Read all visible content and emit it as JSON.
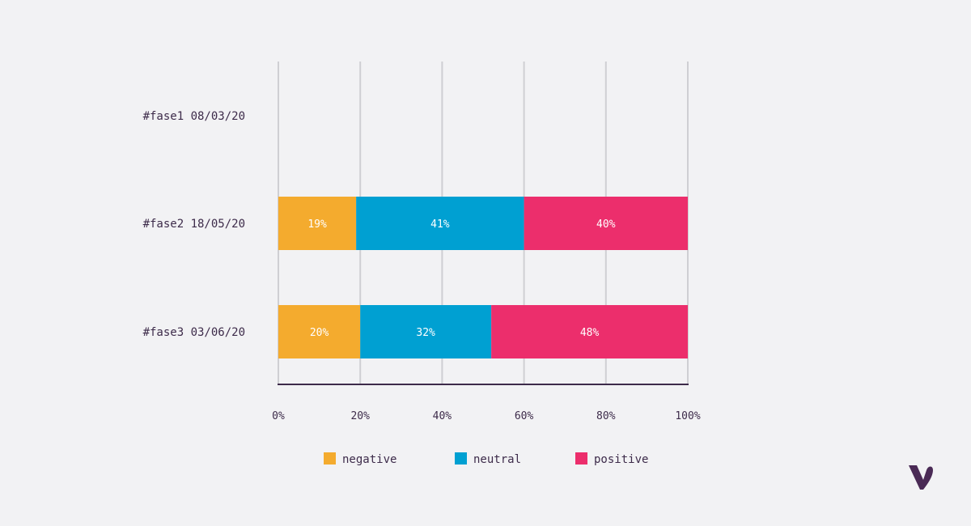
{
  "chart_data": {
    "type": "bar",
    "orientation": "horizontal",
    "stacked": true,
    "categories": [
      "#fase1 08/03/20",
      "#fase2 18/05/20",
      "#fase3 03/06/20"
    ],
    "series": [
      {
        "name": "negative",
        "color": "#f4ab2e",
        "values": [
          null,
          19,
          20
        ],
        "labels": [
          "",
          "19%",
          "20%"
        ]
      },
      {
        "name": "neutral",
        "color": "#00a0d2",
        "values": [
          null,
          41,
          32
        ],
        "labels": [
          "",
          "41%",
          "32%"
        ]
      },
      {
        "name": "positive",
        "color": "#ec2e6c",
        "values": [
          null,
          40,
          48
        ],
        "labels": [
          "",
          "40%",
          "48%"
        ]
      }
    ],
    "xlim": [
      0,
      100
    ],
    "xticks": [
      0,
      20,
      40,
      60,
      80,
      100
    ],
    "xtick_labels": [
      "0%",
      "20%",
      "40%",
      "60%",
      "80%",
      "100%"
    ],
    "title": "",
    "xlabel": "",
    "ylabel": "",
    "grid": "vertical",
    "legend_position": "bottom"
  },
  "colors": {
    "background": "#f2f2f4",
    "grid": "#cfcfd3",
    "axis": "#3d2b4a",
    "text": "#3d2b4a",
    "logo": "#4a2a55"
  },
  "logo": {
    "icon": "brand-logo-icon"
  }
}
